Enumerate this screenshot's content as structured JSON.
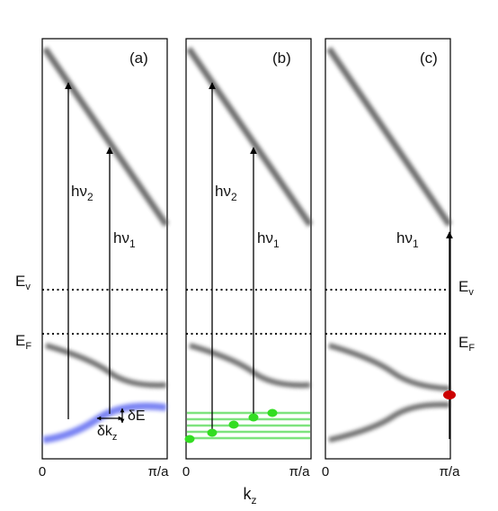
{
  "panels": [
    {
      "label": "(a)",
      "arrows": [
        {
          "main": "hν",
          "sub": "2"
        },
        {
          "main": "hν",
          "sub": "1"
        }
      ],
      "deltas": {
        "energy": "δE",
        "momentum_main": "δk",
        "momentum_sub": "z"
      },
      "colors": {
        "state": "#6a75f2"
      }
    },
    {
      "label": "(b)",
      "arrows": [
        {
          "main": "hν",
          "sub": "2"
        },
        {
          "main": "hν",
          "sub": "1"
        }
      ],
      "colors": {
        "lines": "#7ee37e",
        "dots": "#33dd22"
      }
    },
    {
      "label": "(c)",
      "arrows": [
        {
          "main": "hν",
          "sub": "1"
        }
      ],
      "colors": {
        "band": "#e37a86",
        "dot": "#cc0000"
      }
    }
  ],
  "levels": {
    "ev_left": {
      "main": "E",
      "sub": "v"
    },
    "ef_left": {
      "main": "E",
      "sub": "F"
    },
    "ev_right": {
      "main": "E",
      "sub": "v"
    },
    "ef_right": {
      "main": "E",
      "sub": "F"
    }
  },
  "ticks": [
    "0",
    "π/a",
    "0",
    "π/a",
    "0",
    "π/a"
  ],
  "xaxis": {
    "main": "k",
    "sub": "z"
  },
  "colors": {
    "band_gray": "#666666"
  }
}
